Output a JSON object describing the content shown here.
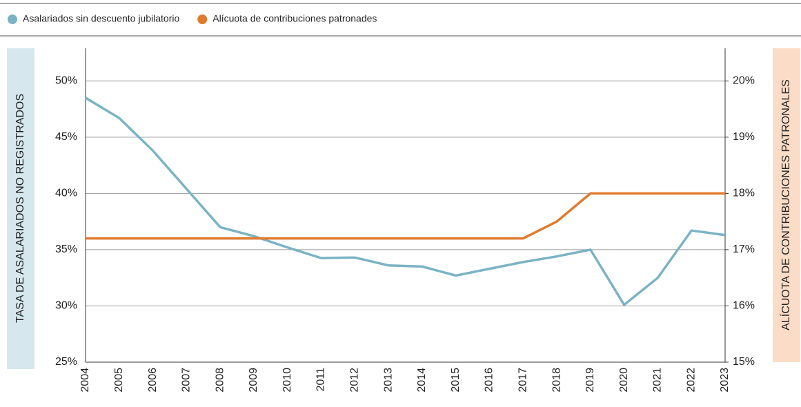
{
  "chart_data": {
    "type": "line",
    "categories": [
      "2004",
      "2005",
      "2006",
      "2007",
      "2008",
      "2009",
      "2010",
      "2011",
      "2012",
      "2013",
      "2014",
      "2015",
      "2016",
      "2017",
      "2018",
      "2019",
      "2020",
      "2021",
      "2022",
      "2023"
    ],
    "series": [
      {
        "name": "Asalariados sin descuento  jubilatorio",
        "color": "#7ab3c4",
        "axis": "y",
        "values": [
          48.5,
          46.7,
          43.8,
          40.4,
          37.0,
          36.2,
          35.2,
          34.25,
          34.3,
          33.6,
          33.5,
          32.7,
          33.3,
          33.9,
          34.4,
          35.0,
          30.1,
          32.5,
          36.7,
          36.3
        ]
      },
      {
        "name": "Alícuota de contribuciones patronades",
        "color": "#e07b2e",
        "axis": "y2",
        "values": [
          17.2,
          17.2,
          17.2,
          17.2,
          17.2,
          17.2,
          17.2,
          17.2,
          17.2,
          17.2,
          17.2,
          17.2,
          17.2,
          17.2,
          17.5,
          18.0,
          18.0,
          18.0,
          18.0,
          18.0
        ]
      }
    ],
    "ylabel": "TASA DE ASALARIADOS NO REGISTRADOS",
    "y2label": "ALÍCUOTA DE CONTRIBUCIONES PATRONALES",
    "ylim": [
      25,
      52.9
    ],
    "yticks": [
      {
        "value": 25,
        "label": "25%"
      },
      {
        "value": 30,
        "label": "30%"
      },
      {
        "value": 35,
        "label": "35%"
      },
      {
        "value": 40,
        "label": "40%"
      },
      {
        "value": 45,
        "label": "45%"
      },
      {
        "value": 50,
        "label": "50%"
      }
    ],
    "y2lim": [
      15,
      20.58
    ],
    "y2ticks": [
      {
        "value": 15,
        "label": "15%"
      },
      {
        "value": 16,
        "label": "16%"
      },
      {
        "value": 17,
        "label": "17%"
      },
      {
        "value": 18,
        "label": "18%"
      },
      {
        "value": 19,
        "label": "19%"
      },
      {
        "value": 20,
        "label": "20%"
      }
    ],
    "grid": true
  }
}
